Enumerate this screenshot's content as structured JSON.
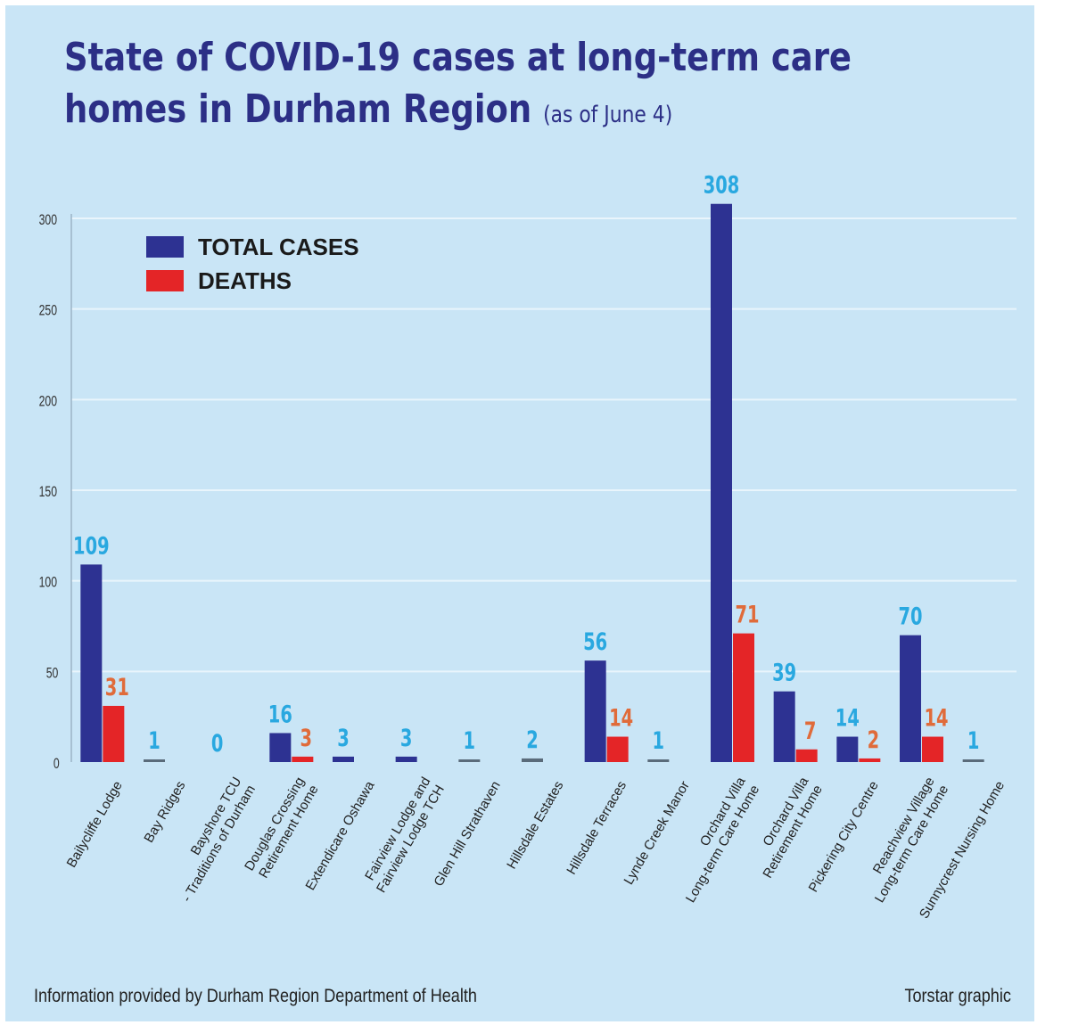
{
  "title": {
    "line1": "State of COVID-19 cases at long-term care",
    "line2": "homes in Durham Region",
    "subtitle": "(as of June 4)"
  },
  "chart_data": {
    "type": "bar",
    "title": "State of COVID-19 cases at long-term care homes in Durham Region (as of June 4)",
    "categories": [
      [
        "Bailycliffe Lodge"
      ],
      [
        "Bay Ridges"
      ],
      [
        "Bayshore TCU",
        "- Traditions of Durham"
      ],
      [
        "Douglas Crossing",
        "Retirement Home"
      ],
      [
        "Extendicare Oshawa"
      ],
      [
        "Fairview Lodge and",
        "Fairview Lodge TCH"
      ],
      [
        "Glen Hill Strathaven"
      ],
      [
        "Hillsdale Estates"
      ],
      [
        "Hillsdale Terraces"
      ],
      [
        "Lynde Creek Manor"
      ],
      [
        "Orchard Villa",
        "Long-term Care Home"
      ],
      [
        "Orchard Villa",
        "Retirement Home"
      ],
      [
        "Pickering City Centre"
      ],
      [
        "Reachview Village",
        "Long-term Care Home"
      ],
      [
        "Sunnycrest Nursing Home"
      ]
    ],
    "series": [
      {
        "name": "TOTAL CASES",
        "color": "#2d3292",
        "label_color": "#29a8e0",
        "values": [
          109,
          1,
          0,
          16,
          3,
          3,
          1,
          2,
          56,
          1,
          308,
          39,
          14,
          70,
          1
        ]
      },
      {
        "name": "DEATHS",
        "color": "#e42527",
        "label_color": "#e06b3a",
        "values": [
          31,
          null,
          null,
          3,
          null,
          null,
          null,
          null,
          14,
          null,
          71,
          7,
          2,
          14,
          null
        ]
      }
    ],
    "ylim": [
      0,
      300
    ],
    "yticks": [
      0,
      50,
      100,
      150,
      200,
      250,
      300
    ],
    "legend": "top-left",
    "grid": true
  },
  "footer": {
    "source": "Information provided by Durham Region Department of Health",
    "credit": "Torstar graphic"
  }
}
